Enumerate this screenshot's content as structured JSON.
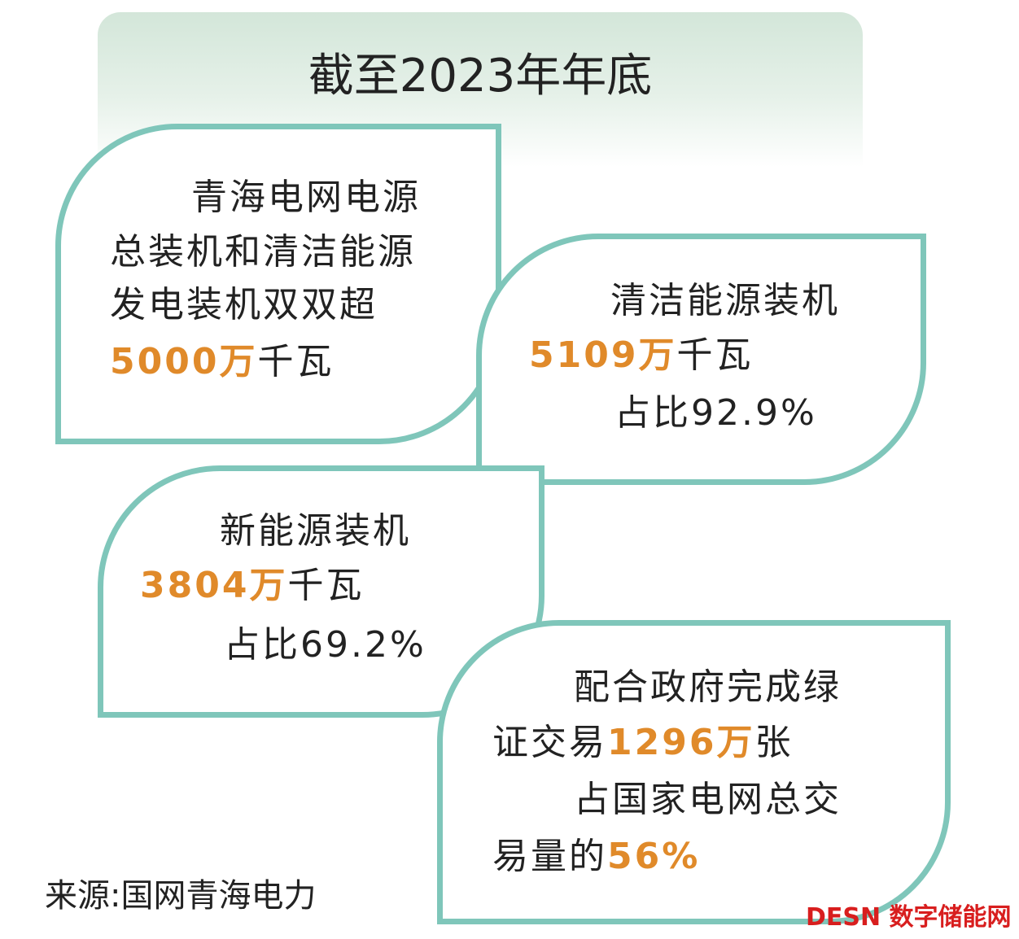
{
  "title": "截至2023年年底",
  "accent_color": "#e08a2a",
  "cards": [
    {
      "lines": [
        [
          "青海电网电源"
        ],
        [
          "总装机和清洁能源"
        ],
        [
          "发电装机双双超"
        ],
        [
          {
            "text": "5000万",
            "accent": true
          },
          "千瓦"
        ]
      ]
    },
    {
      "lines": [
        [
          "清洁能源装机"
        ],
        [
          {
            "text": "5109万",
            "accent": true
          },
          "千瓦"
        ],
        [
          "占比92.9%"
        ]
      ]
    },
    {
      "lines": [
        [
          "新能源装机"
        ],
        [
          {
            "text": "3804万",
            "accent": true
          },
          "千瓦"
        ],
        [
          "占比69.2%"
        ]
      ]
    },
    {
      "lines": [
        [
          "配合政府完成绿"
        ],
        [
          "证交易",
          {
            "text": "1296万",
            "accent": true
          },
          "张"
        ],
        [
          "占国家电网总交"
        ],
        [
          "易量的",
          {
            "text": "56%",
            "accent": true
          }
        ]
      ]
    }
  ],
  "source": "来源:国网青海电力",
  "watermark": "DESN 数字储能网"
}
